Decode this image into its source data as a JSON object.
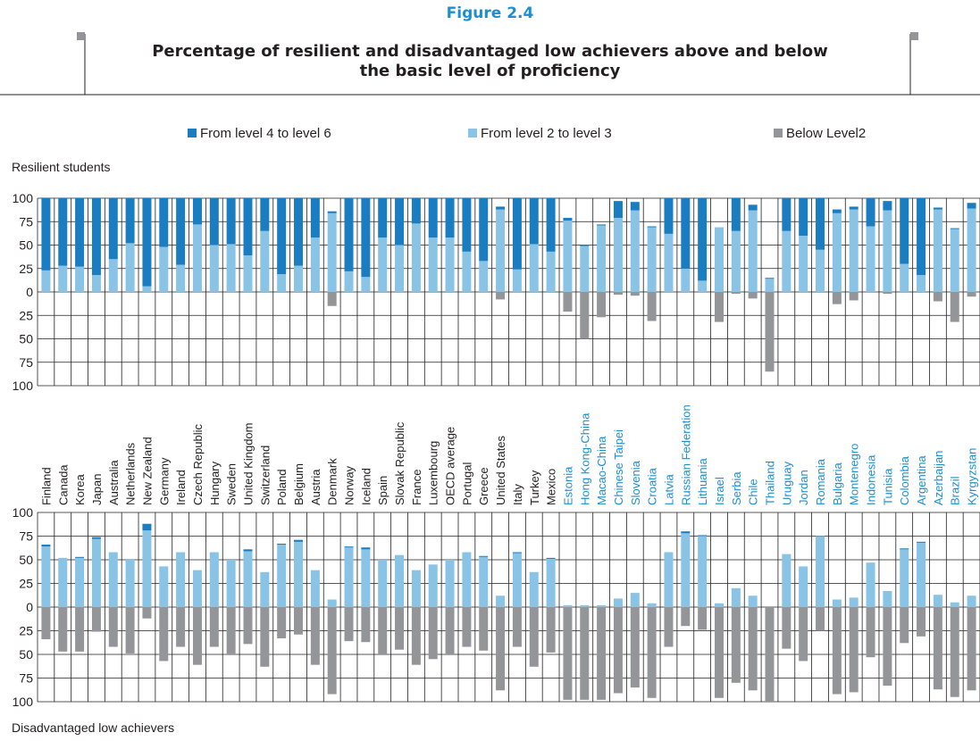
{
  "figure": {
    "label": "Figure 2.4",
    "title_lines": [
      "Percentage of resilient and disadvantaged low achievers above and below",
      "the basic level of proficiency"
    ]
  },
  "legend": [
    {
      "label": "From level 4 to level 6",
      "color": "#1a7dc1"
    },
    {
      "label": "From level 2 to level 3",
      "color": "#89c3e6"
    },
    {
      "label": "Below Level2",
      "color": "#939598"
    }
  ],
  "panels": {
    "top_label": "Resilient students",
    "bottom_label": "Disadvantaged low achievers"
  },
  "chart_data": {
    "type": "bar",
    "stacked": true,
    "ytick_labels": [
      "100",
      "75",
      "50",
      "25",
      "0",
      "25",
      "50",
      "75",
      "100"
    ],
    "ylim": [
      -100,
      100
    ],
    "grid": true,
    "oecd_label_color": "#231f20",
    "partner_label_color": "#1c8fd0",
    "categories": [
      "Finland",
      "Canada",
      "Korea",
      "Japan",
      "Australia",
      "Netherlands",
      "New Zealand",
      "Germany",
      "Ireland",
      "Czech Republic",
      "Hungary",
      "Sweden",
      "United Kingdom",
      "Switzerland",
      "Poland",
      "Belgium",
      "Austria",
      "Denmark",
      "Norway",
      "Iceland",
      "Spain",
      "Slovak Republic",
      "France",
      "Luxembourg",
      "OECD average",
      "Portugal",
      "Greece",
      "United States",
      "Italy",
      "Turkey",
      "Mexico",
      "Estonia",
      "Hong Kong-China",
      "Macao-China",
      "Chinese Taipei",
      "Slovenia",
      "Croatia",
      "Latvia",
      "Russian Federation",
      "Lithuania",
      "Israel",
      "Serbia",
      "Chile",
      "Thailand",
      "Uruguay",
      "Jordan",
      "Romania",
      "Bulgaria",
      "Montenegro",
      "Indonesia",
      "Tunisia",
      "Colombia",
      "Argentina",
      "Azerbaijan",
      "Brazil",
      "Kyrgyzstan"
    ],
    "partner": [
      false,
      false,
      false,
      false,
      false,
      false,
      false,
      false,
      false,
      false,
      false,
      false,
      false,
      false,
      false,
      false,
      false,
      false,
      false,
      false,
      false,
      false,
      false,
      false,
      false,
      false,
      false,
      false,
      false,
      false,
      false,
      true,
      true,
      true,
      true,
      true,
      true,
      true,
      true,
      true,
      true,
      true,
      true,
      true,
      true,
      true,
      true,
      true,
      true,
      true,
      true,
      true,
      true,
      true,
      true,
      true
    ],
    "resilient": {
      "label": "Resilient students",
      "series": [
        {
          "name": "From level 4 to level 6",
          "color": "#1a7dc1",
          "values": [
            77,
            72,
            73,
            82,
            65,
            48,
            94,
            52,
            71,
            28,
            50,
            49,
            61,
            35,
            81,
            72,
            42,
            2,
            78,
            84,
            42,
            50,
            27,
            42,
            42,
            57,
            67,
            3,
            76,
            49,
            57,
            3,
            1,
            1,
            18,
            9,
            1,
            38,
            75,
            88,
            0,
            35,
            6,
            1,
            35,
            40,
            55,
            4,
            3,
            30,
            10,
            70,
            82,
            2,
            1,
            6
          ]
        },
        {
          "name": "From level 2 to level 3",
          "color": "#89c3e6",
          "values": [
            23,
            28,
            27,
            18,
            35,
            52,
            6,
            48,
            29,
            72,
            50,
            51,
            39,
            65,
            19,
            28,
            58,
            84,
            22,
            16,
            58,
            50,
            73,
            58,
            58,
            43,
            33,
            88,
            24,
            51,
            43,
            76,
            49,
            71,
            79,
            87,
            69,
            62,
            25,
            12,
            69,
            65,
            87,
            14,
            65,
            60,
            45,
            84,
            88,
            70,
            87,
            30,
            18,
            88,
            67,
            89
          ]
        },
        {
          "name": "Below Level2",
          "color": "#939598",
          "values": [
            0,
            0,
            0,
            0,
            0,
            0,
            0,
            0,
            0,
            0,
            0,
            0,
            0,
            0,
            0,
            0,
            0,
            15,
            0,
            0,
            0,
            0,
            0,
            0,
            0,
            0,
            0,
            8,
            0,
            0,
            0,
            21,
            50,
            27,
            3,
            4,
            31,
            0,
            0,
            0,
            32,
            2,
            7,
            85,
            0,
            0,
            0,
            13,
            9,
            0,
            2,
            0,
            0,
            10,
            32,
            5
          ]
        }
      ]
    },
    "disadvantaged": {
      "label": "Disadvantaged low achievers",
      "series": [
        {
          "name": "From level 4 to level 6",
          "color": "#1a7dc1",
          "values": [
            2,
            0,
            1,
            2,
            0,
            0,
            7,
            0,
            0,
            0,
            0,
            0,
            2,
            0,
            1,
            2,
            0,
            0,
            1,
            2,
            0,
            0,
            0,
            0,
            0,
            0,
            1,
            0,
            1,
            0,
            1,
            0,
            0,
            0,
            0,
            0,
            0,
            0,
            2,
            1,
            0,
            0,
            0,
            0,
            0,
            0,
            0,
            0,
            0,
            0,
            0,
            1,
            1,
            0,
            0,
            0
          ]
        },
        {
          "name": "From level 2 to level 3",
          "color": "#89c3e6",
          "values": [
            64,
            52,
            52,
            72,
            58,
            51,
            81,
            43,
            58,
            39,
            58,
            50,
            59,
            37,
            66,
            69,
            39,
            8,
            63,
            61,
            50,
            55,
            39,
            45,
            50,
            58,
            53,
            12,
            57,
            37,
            51,
            2,
            2,
            2,
            9,
            15,
            4,
            58,
            78,
            75,
            4,
            20,
            12,
            0,
            56,
            43,
            75,
            8,
            10,
            47,
            17,
            61,
            68,
            13,
            5,
            12
          ]
        },
        {
          "name": "Below Level2",
          "color": "#939598",
          "values": [
            34,
            47,
            47,
            26,
            42,
            49,
            12,
            57,
            42,
            61,
            42,
            50,
            39,
            63,
            33,
            29,
            61,
            92,
            36,
            37,
            50,
            45,
            61,
            55,
            50,
            42,
            46,
            88,
            42,
            63,
            48,
            98,
            98,
            98,
            91,
            85,
            96,
            42,
            20,
            24,
            96,
            80,
            88,
            100,
            44,
            57,
            25,
            92,
            90,
            53,
            83,
            38,
            31,
            87,
            95,
            88
          ]
        }
      ]
    }
  }
}
